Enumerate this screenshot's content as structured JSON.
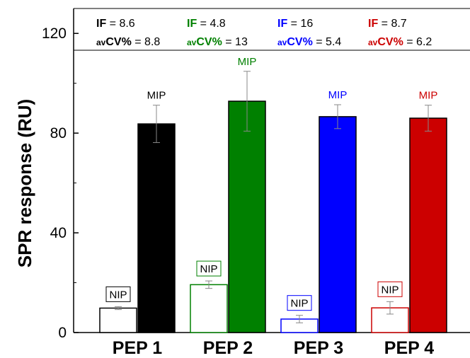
{
  "chart_data": {
    "type": "bar",
    "ylabel": "SPR response (RU)",
    "xlabel": "",
    "ylim": [
      0,
      130
    ],
    "yticks": [
      0,
      40,
      80,
      120
    ],
    "categories": [
      "PEP 1",
      "PEP 2",
      "PEP 3",
      "PEP 4"
    ],
    "colors": [
      "#000000",
      "#008000",
      "#0000ff",
      "#cc0000"
    ],
    "series": [
      {
        "name": "NIP",
        "fill": "open",
        "values": [
          9.8,
          19.2,
          5.4,
          9.9
        ],
        "errors": [
          0.6,
          1.5,
          1.5,
          2.5
        ]
      },
      {
        "name": "MIP",
        "fill": "filled",
        "values": [
          83.7,
          92.8,
          86.6,
          86.0
        ],
        "errors": [
          7.5,
          12.0,
          4.8,
          5.2
        ]
      }
    ],
    "annotations": [
      {
        "if_label": "IF",
        "if_value": "= 8.6",
        "cv_prefix": "av",
        "cv_label": "CV%",
        "cv_value": "= 8.8",
        "color": "#000000"
      },
      {
        "if_label": "IF",
        "if_value": "= 4.8",
        "cv_prefix": "av",
        "cv_label": "CV%",
        "cv_value": "= 13",
        "color": "#008000"
      },
      {
        "if_label": "IF",
        "if_value": "= 16",
        "cv_prefix": "av",
        "cv_label": "CV%",
        "cv_value": "= 5.4",
        "color": "#0000ff"
      },
      {
        "if_label": "IF",
        "if_value": "= 8.7",
        "cv_prefix": "av",
        "cv_label": "CV%",
        "cv_value": "= 6.2",
        "color": "#cc0000"
      }
    ],
    "grid": false,
    "legend": "none"
  }
}
